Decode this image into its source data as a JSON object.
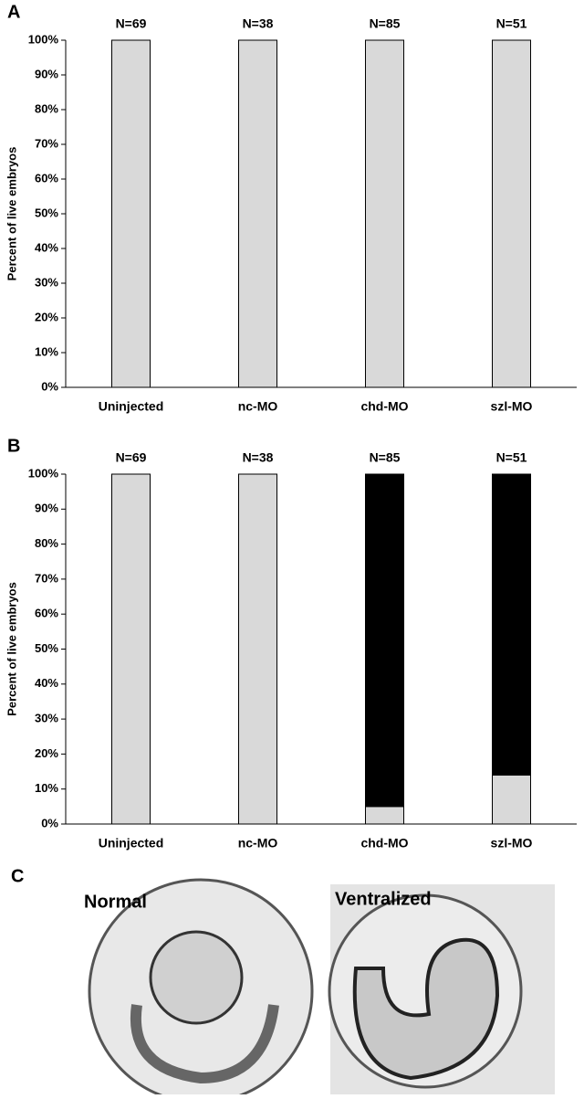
{
  "chart_data": [
    {
      "type": "bar",
      "panel": "A",
      "ylabel": "Percent of live embryos",
      "categories": [
        "Uninjected",
        "nc-MO",
        "chd-MO",
        "szl-MO"
      ],
      "annotations": [
        "N=69",
        "N=38",
        "N=85",
        "N=51"
      ],
      "series": [
        {
          "color": "#d9d9d9",
          "values": [
            100,
            100,
            100,
            100
          ]
        }
      ],
      "ylim": [
        0,
        100
      ],
      "yticks": [
        {
          "value": 0,
          "label": "0%"
        },
        {
          "value": 10,
          "label": "10%"
        },
        {
          "value": 20,
          "label": "20%"
        },
        {
          "value": 30,
          "label": "30%"
        },
        {
          "value": 40,
          "label": "40%"
        },
        {
          "value": 50,
          "label": "50%"
        },
        {
          "value": 60,
          "label": "60%"
        },
        {
          "value": 70,
          "label": "70%"
        },
        {
          "value": 80,
          "label": "80%"
        },
        {
          "value": 90,
          "label": "90%"
        },
        {
          "value": 100,
          "label": "100%"
        }
      ]
    },
    {
      "type": "stacked_bar",
      "panel": "B",
      "ylabel": "Percent of live embryos",
      "categories": [
        "Uninjected",
        "nc-MO",
        "chd-MO",
        "szl-MO"
      ],
      "annotations": [
        "N=69",
        "N=38",
        "N=85",
        "N=51"
      ],
      "series": [
        {
          "color": "#d9d9d9",
          "values": [
            100,
            100,
            5,
            14
          ]
        },
        {
          "color": "#000000",
          "values": [
            0,
            0,
            95,
            86
          ]
        }
      ],
      "ylim": [
        0,
        100
      ],
      "yticks": [
        {
          "value": 0,
          "label": "0%"
        },
        {
          "value": 10,
          "label": "10%"
        },
        {
          "value": 20,
          "label": "20%"
        },
        {
          "value": 30,
          "label": "30%"
        },
        {
          "value": 40,
          "label": "40%"
        },
        {
          "value": 50,
          "label": "50%"
        },
        {
          "value": 60,
          "label": "60%"
        },
        {
          "value": 70,
          "label": "70%"
        },
        {
          "value": 80,
          "label": "80%"
        },
        {
          "value": 90,
          "label": "90%"
        },
        {
          "value": 100,
          "label": "100%"
        }
      ]
    }
  ],
  "panel_c": {
    "label": "C",
    "images": [
      {
        "label": "Normal"
      },
      {
        "label": "Ventralized"
      }
    ]
  }
}
